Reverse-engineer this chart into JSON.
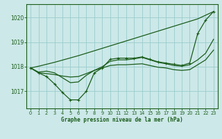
{
  "title": "Graphe pression niveau de la mer (hPa)",
  "bg_color": "#cce8e8",
  "grid_color": "#99cccc",
  "line_color": "#1a5c1a",
  "x_values": [
    0,
    1,
    2,
    3,
    4,
    5,
    6,
    7,
    8,
    9,
    10,
    11,
    12,
    13,
    14,
    15,
    16,
    17,
    18,
    19,
    20,
    21,
    22,
    23
  ],
  "series_smooth": [
    1017.95,
    1017.78,
    1017.82,
    1017.75,
    1017.55,
    1017.35,
    1017.38,
    1017.65,
    1017.85,
    1018.0,
    1018.22,
    1018.28,
    1018.28,
    1018.32,
    1018.38,
    1018.28,
    1018.18,
    1018.12,
    1018.05,
    1018.02,
    1018.08,
    1018.28,
    1018.55,
    1019.12
  ],
  "series_linear": [
    1017.95,
    1018.02,
    1018.1,
    1018.18,
    1018.27,
    1018.36,
    1018.45,
    1018.55,
    1018.65,
    1018.75,
    1018.85,
    1018.95,
    1019.05,
    1019.15,
    1019.25,
    1019.35,
    1019.45,
    1019.55,
    1019.65,
    1019.75,
    1019.85,
    1019.95,
    1020.1,
    1020.25
  ],
  "series_marked": [
    1017.95,
    1017.75,
    1017.6,
    1017.3,
    1016.95,
    1016.65,
    1016.65,
    1017.0,
    1017.75,
    1017.95,
    1018.3,
    1018.35,
    1018.35,
    1018.35,
    1018.4,
    1018.3,
    1018.2,
    1018.15,
    1018.1,
    1018.05,
    1018.15,
    1019.35,
    1019.9,
    1020.25
  ],
  "series_flat": [
    1017.95,
    1017.75,
    1017.72,
    1017.68,
    1017.62,
    1017.58,
    1017.6,
    1017.72,
    1017.85,
    1017.95,
    1018.05,
    1018.08,
    1018.08,
    1018.1,
    1018.12,
    1018.05,
    1017.98,
    1017.95,
    1017.88,
    1017.85,
    1017.88,
    1018.08,
    1018.28,
    1018.68
  ],
  "ylim": [
    1016.3,
    1020.55
  ],
  "yticks": [
    1017,
    1018,
    1019,
    1020
  ],
  "xlim": [
    -0.5,
    23.5
  ],
  "figsize": [
    3.2,
    2.0
  ],
  "dpi": 100
}
